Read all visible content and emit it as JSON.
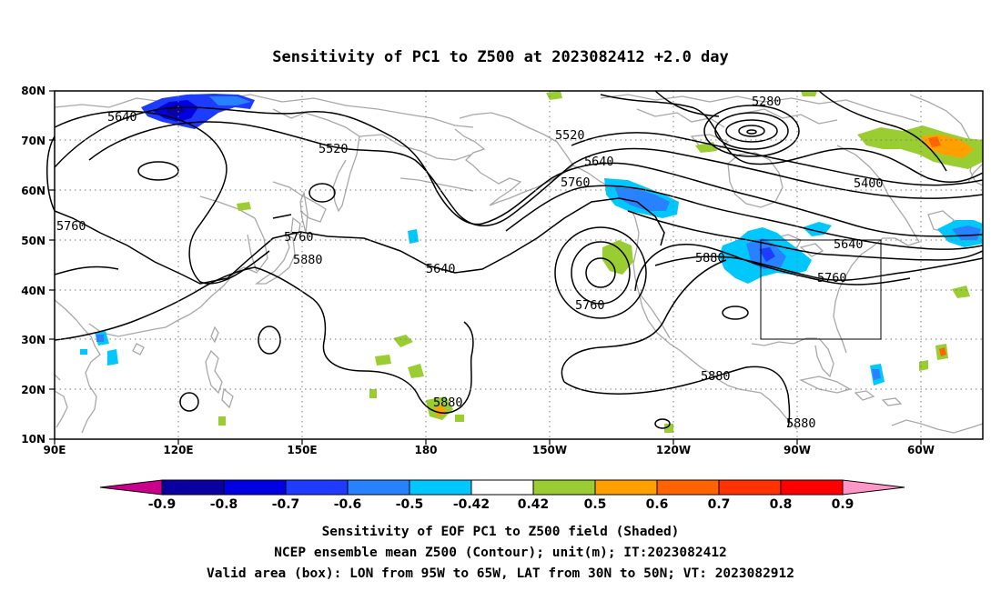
{
  "title": "Sensitivity of PC1 to Z500 at 2023082412 +2.0 day",
  "lat_labels": [
    "80N",
    "70N",
    "60N",
    "50N",
    "40N",
    "30N",
    "20N",
    "10N"
  ],
  "lon_labels": [
    "90E",
    "120E",
    "150E",
    "180",
    "150W",
    "120W",
    "90W",
    "60W"
  ],
  "contour_labels": [
    {
      "text": "5640"
    },
    {
      "text": "5520"
    },
    {
      "text": "5760"
    },
    {
      "text": "5760"
    },
    {
      "text": "5880"
    },
    {
      "text": "5640"
    },
    {
      "text": "5520"
    },
    {
      "text": "5640"
    },
    {
      "text": "5760"
    },
    {
      "text": "5280"
    },
    {
      "text": "5400"
    },
    {
      "text": "5640"
    },
    {
      "text": "5760"
    },
    {
      "text": "5880"
    },
    {
      "text": "5760"
    },
    {
      "text": "5880"
    },
    {
      "text": "5880"
    },
    {
      "text": "5880"
    }
  ],
  "colorbar": {
    "labels": [
      "-0.9",
      "-0.8",
      "-0.7",
      "-0.6",
      "-0.5",
      "-0.42",
      "0.42",
      "0.5",
      "0.6",
      "0.7",
      "0.8",
      "0.9"
    ],
    "colors": [
      "#0a00a0",
      "#0000e0",
      "#1e3cff",
      "#2882ff",
      "#00c8ff",
      "#ffffff",
      "#9acd32",
      "#ffa000",
      "#ff6400",
      "#ff3200",
      "#ff0000"
    ],
    "low_color": "#c8008c",
    "high_color": "#ff96c8"
  },
  "caption": [
    "Sensitivity of EOF PC1 to Z500 field (Shaded)",
    "NCEP ensemble mean Z500 (Contour); unit(m); IT:2023082412",
    "Valid area (box): LON from 95W to 65W, LAT from 30N to 50N; VT: 2023082912"
  ]
}
